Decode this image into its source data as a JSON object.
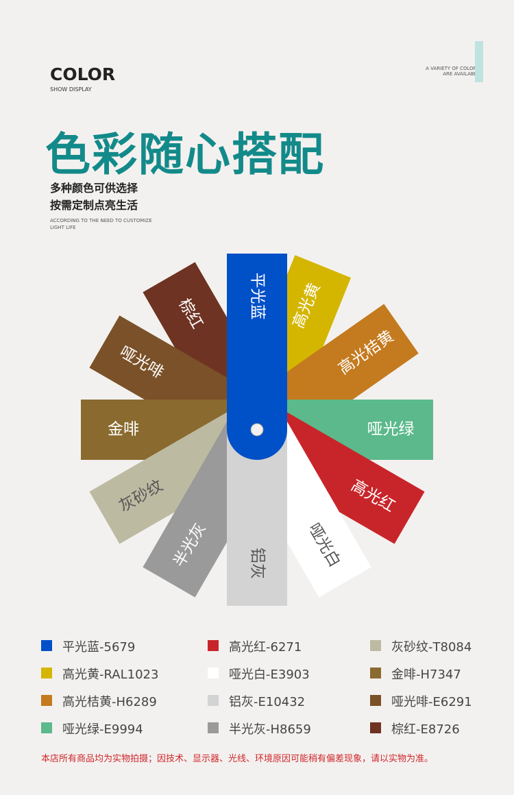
{
  "header": {
    "brand": "COLOR",
    "brand_sub": "SHOW DISPLAY",
    "tagline": [
      "A VARIETY OF COLORS",
      "ARE AVAILABLE"
    ],
    "title": "色彩随心搭配",
    "subtitle": [
      "多种颜色可供选择",
      "按需定制点亮生活"
    ],
    "english": [
      "ACCORDING TO THE NEED TO CUSTOMIZE",
      "LIGHT LIFE"
    ]
  },
  "swatches": [
    {
      "label": "棕红",
      "color": "#6e3322",
      "text_color": "#ffffff"
    },
    {
      "label": "哑光啡",
      "color": "#7a5128",
      "text_color": "#ffffff"
    },
    {
      "label": "金啡",
      "color": "#8a6a2f",
      "text_color": "#ffffff"
    },
    {
      "label": "灰砂纹",
      "color": "#bdbaa2",
      "text_color": "#555555"
    },
    {
      "label": "半光灰",
      "color": "#9a9a9a",
      "text_color": "#ffffff"
    },
    {
      "label": "高光黄",
      "color": "#d4b600",
      "text_color": "#ffffff"
    },
    {
      "label": "高光桔黄",
      "color": "#c47a1e",
      "text_color": "#ffffff"
    },
    {
      "label": "哑光绿",
      "color": "#5bb98b",
      "text_color": "#ffffff"
    },
    {
      "label": "高光红",
      "color": "#c8252a",
      "text_color": "#ffffff"
    },
    {
      "label": "哑光白",
      "color": "#ffffff",
      "text_color": "#555555"
    },
    {
      "label": "铝灰",
      "color": "#d3d3d3",
      "text_color": "#555555"
    },
    {
      "label": "平光蓝",
      "color": "#0050c8",
      "text_color": "#ffffff"
    }
  ],
  "legend": [
    {
      "label": "平光蓝-5679",
      "color": "#0050c8"
    },
    {
      "label": "高光红-6271",
      "color": "#c8252a"
    },
    {
      "label": "灰砂纹-T8084",
      "color": "#bdbaa2"
    },
    {
      "label": "高光黄-RAL1023",
      "color": "#d4b600"
    },
    {
      "label": "哑光白-E3903",
      "color": "#ffffff"
    },
    {
      "label": "金啡-H7347",
      "color": "#8a6a2f"
    },
    {
      "label": "高光桔黄-H6289",
      "color": "#c47a1e"
    },
    {
      "label": "铝灰-E10432",
      "color": "#d3d3d3"
    },
    {
      "label": "哑光啡-E6291",
      "color": "#7a5128"
    },
    {
      "label": "哑光绿-E9994",
      "color": "#5bb98b"
    },
    {
      "label": "半光灰-H8659",
      "color": "#9a9a9a"
    },
    {
      "label": "棕红-E8726",
      "color": "#6e3322"
    }
  ],
  "footnote": "本店所有商品均为实物拍摄；因技术、显示器、光线、环境原因可能稍有偏差现象，请以实物为准。"
}
